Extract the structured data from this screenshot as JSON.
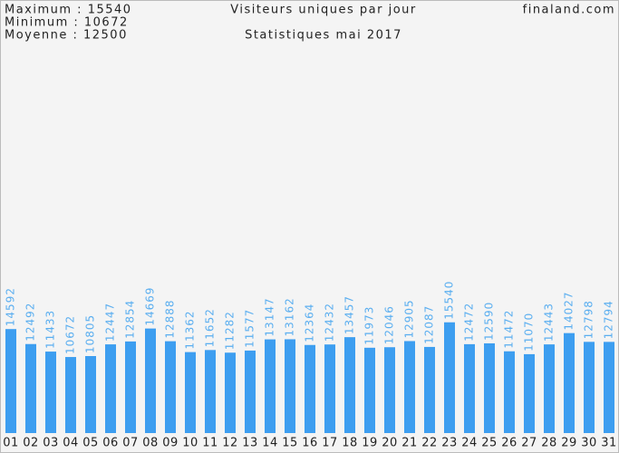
{
  "header": {
    "stats": [
      "Maximum : 15540",
      "Minimum : 10672",
      "Moyenne : 12500"
    ],
    "site": "finaland.com"
  },
  "chart_data": {
    "type": "bar",
    "title": "Visiteurs uniques par jour",
    "subtitle": "Statistiques mai 2017",
    "categories": [
      "01",
      "02",
      "03",
      "04",
      "05",
      "06",
      "07",
      "08",
      "09",
      "10",
      "11",
      "12",
      "13",
      "14",
      "15",
      "16",
      "17",
      "18",
      "19",
      "20",
      "21",
      "22",
      "23",
      "24",
      "25",
      "26",
      "27",
      "28",
      "29",
      "30",
      "31"
    ],
    "values": [
      14592,
      12492,
      11433,
      10672,
      10805,
      12447,
      12854,
      14669,
      12888,
      11362,
      11652,
      11282,
      11577,
      13147,
      13162,
      12364,
      12432,
      13457,
      11973,
      12046,
      12905,
      12087,
      15540,
      12472,
      12590,
      11472,
      11070,
      12443,
      14027,
      12798,
      12794
    ],
    "color": "#3d9ef0",
    "label_color": "#5aaef0",
    "ylim": [
      0,
      60000
    ]
  }
}
